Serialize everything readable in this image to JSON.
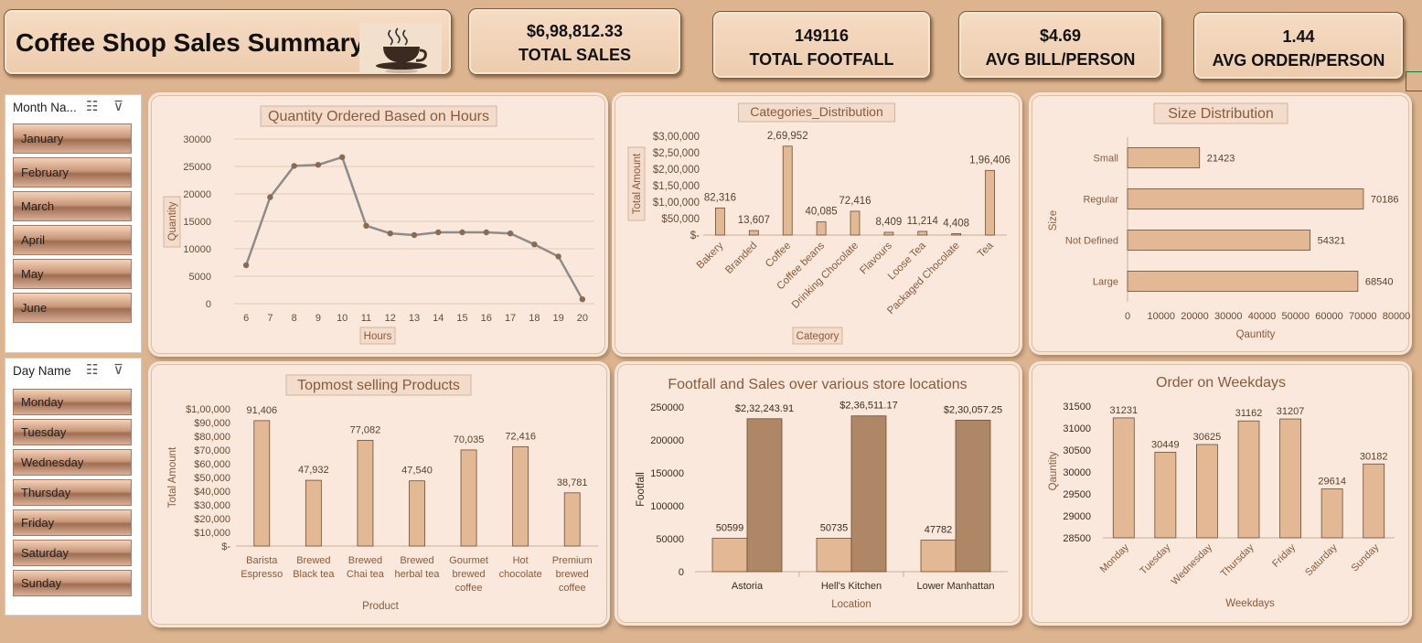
{
  "header": {
    "title": "Coffee Shop Sales Summary",
    "icon": "coffee-cup-icon"
  },
  "kpis": [
    {
      "value": "$6,98,812.33",
      "label": "TOTAL SALES"
    },
    {
      "value": "149116",
      "label": "TOTAL FOOTFALL"
    },
    {
      "value": "$4.69",
      "label": "AVG BILL/PERSON"
    },
    {
      "value": "1.44",
      "label": "AVG ORDER/PERSON"
    }
  ],
  "month_slicer": {
    "header": "Month Na...",
    "items": [
      "January",
      "February",
      "March",
      "April",
      "May",
      "June"
    ]
  },
  "day_slicer": {
    "header": "Day Name",
    "items": [
      "Monday",
      "Tuesday",
      "Wednesday",
      "Thursday",
      "Friday",
      "Saturday",
      "Sunday"
    ]
  },
  "colors": {
    "background": "#dcb490",
    "panel": "#fae8dc",
    "bar_light": "#e2b994",
    "bar_dark": "#ae8866",
    "line": "#8c8c8c",
    "text_brown": "#8a5a3a"
  },
  "chart_data": [
    {
      "id": "hours",
      "type": "line",
      "title": "Quantity Ordered Based on Hours",
      "xlabel": "Hours",
      "ylabel": "Quantity",
      "x": [
        "6",
        "7",
        "8",
        "9",
        "10",
        "11",
        "12",
        "13",
        "14",
        "15",
        "16",
        "17",
        "18",
        "19",
        "20"
      ],
      "values": [
        7000,
        19400,
        25100,
        25300,
        26700,
        14200,
        12800,
        12500,
        13000,
        13000,
        13000,
        12800,
        10800,
        8600,
        800
      ],
      "yticks": [
        "0",
        "5000",
        "10000",
        "15000",
        "20000",
        "25000",
        "30000"
      ],
      "ylim": [
        0,
        30000
      ],
      "grid": true
    },
    {
      "id": "categories",
      "type": "bar",
      "title": "Categories_Distribution",
      "xlabel": "Category",
      "ylabel": "Total Amount",
      "categories": [
        "Bakery",
        "Branded",
        "Coffee",
        "Coffee beans",
        "Drinking Chocolate",
        "Flavours",
        "Loose Tea",
        "Packaged Chocolate",
        "Tea"
      ],
      "values": [
        82316,
        13607,
        269952,
        40085,
        72416,
        8409,
        11214,
        4408,
        196406
      ],
      "labels": [
        "82,316",
        "13,607",
        "2,69,952",
        "40,085",
        "72,416",
        "8,409",
        "11,214",
        "4,408",
        "1,96,406"
      ],
      "yticks": [
        "$-",
        "$50,000",
        "$1,00,000",
        "$1,50,000",
        "$2,00,000",
        "$2,50,000",
        "$3,00,000"
      ],
      "ylim": [
        0,
        300000
      ]
    },
    {
      "id": "size",
      "type": "bar",
      "orientation": "horizontal",
      "title": "Size Distribution",
      "xlabel": "Qauntity",
      "ylabel": "Size",
      "categories": [
        "Small",
        "Regular",
        "Not Defined",
        "Large"
      ],
      "values": [
        21423,
        70186,
        54321,
        68540
      ],
      "labels": [
        "21423",
        "70186",
        "54321",
        "68540"
      ],
      "xticks": [
        "0",
        "10000",
        "20000",
        "30000",
        "40000",
        "50000",
        "60000",
        "70000",
        "80000"
      ],
      "xlim": [
        0,
        80000
      ]
    },
    {
      "id": "products",
      "type": "bar",
      "title": "Topmost selling Products",
      "xlabel": "Product",
      "ylabel": "Total Amount",
      "categories": [
        [
          "Barista",
          "Espresso"
        ],
        [
          "Brewed",
          "Black tea"
        ],
        [
          "Brewed",
          "Chai tea"
        ],
        [
          "Brewed",
          "herbal tea"
        ],
        [
          "Gourmet",
          "brewed",
          "coffee"
        ],
        [
          "Hot",
          "chocolate"
        ],
        [
          "Premium",
          "brewed",
          "coffee"
        ]
      ],
      "values": [
        91406,
        47932,
        77082,
        47540,
        70035,
        72416,
        38781
      ],
      "labels": [
        "91,406",
        "47,932",
        "77,082",
        "47,540",
        "70,035",
        "72,416",
        "38,781"
      ],
      "yticks": [
        "$-",
        "$10,000",
        "$20,000",
        "$30,000",
        "$40,000",
        "$50,000",
        "$60,000",
        "$70,000",
        "$80,000",
        "$90,000",
        "$1,00,000"
      ],
      "ylim": [
        0,
        100000
      ]
    },
    {
      "id": "locations",
      "type": "bar",
      "title": "Footfall and Sales over various store locations",
      "xlabel": "Location",
      "ylabel": "Footfall",
      "categories": [
        "Astoria",
        "Hell's Kitchen",
        "Lower Manhattan"
      ],
      "series": [
        {
          "values": [
            50599,
            50735,
            47782
          ],
          "labels": [
            "50599",
            "50735",
            "47782"
          ]
        },
        {
          "values": [
            232243.91,
            236511.17,
            230057.25
          ],
          "labels": [
            "$2,32,243.91",
            "$2,36,511.17",
            "$2,30,057.25"
          ]
        }
      ],
      "yticks": [
        "0",
        "50000",
        "100000",
        "150000",
        "200000",
        "250000"
      ],
      "ylim": [
        0,
        250000
      ]
    },
    {
      "id": "weekdays",
      "type": "bar",
      "title": "Order on Weekdays",
      "xlabel": "Weekdays",
      "ylabel": "Qauntity",
      "categories": [
        "Monday",
        "Tuesday",
        "Wednesday",
        "Thursday",
        "Friday",
        "Saturday",
        "Sunday"
      ],
      "values": [
        31231,
        30449,
        30625,
        31162,
        31207,
        29614,
        30182
      ],
      "labels": [
        "31231",
        "30449",
        "30625",
        "31162",
        "31207",
        "29614",
        "30182"
      ],
      "yticks": [
        "28500",
        "29000",
        "29500",
        "30000",
        "30500",
        "31000",
        "31500"
      ],
      "ylim": [
        28500,
        31500
      ]
    }
  ]
}
